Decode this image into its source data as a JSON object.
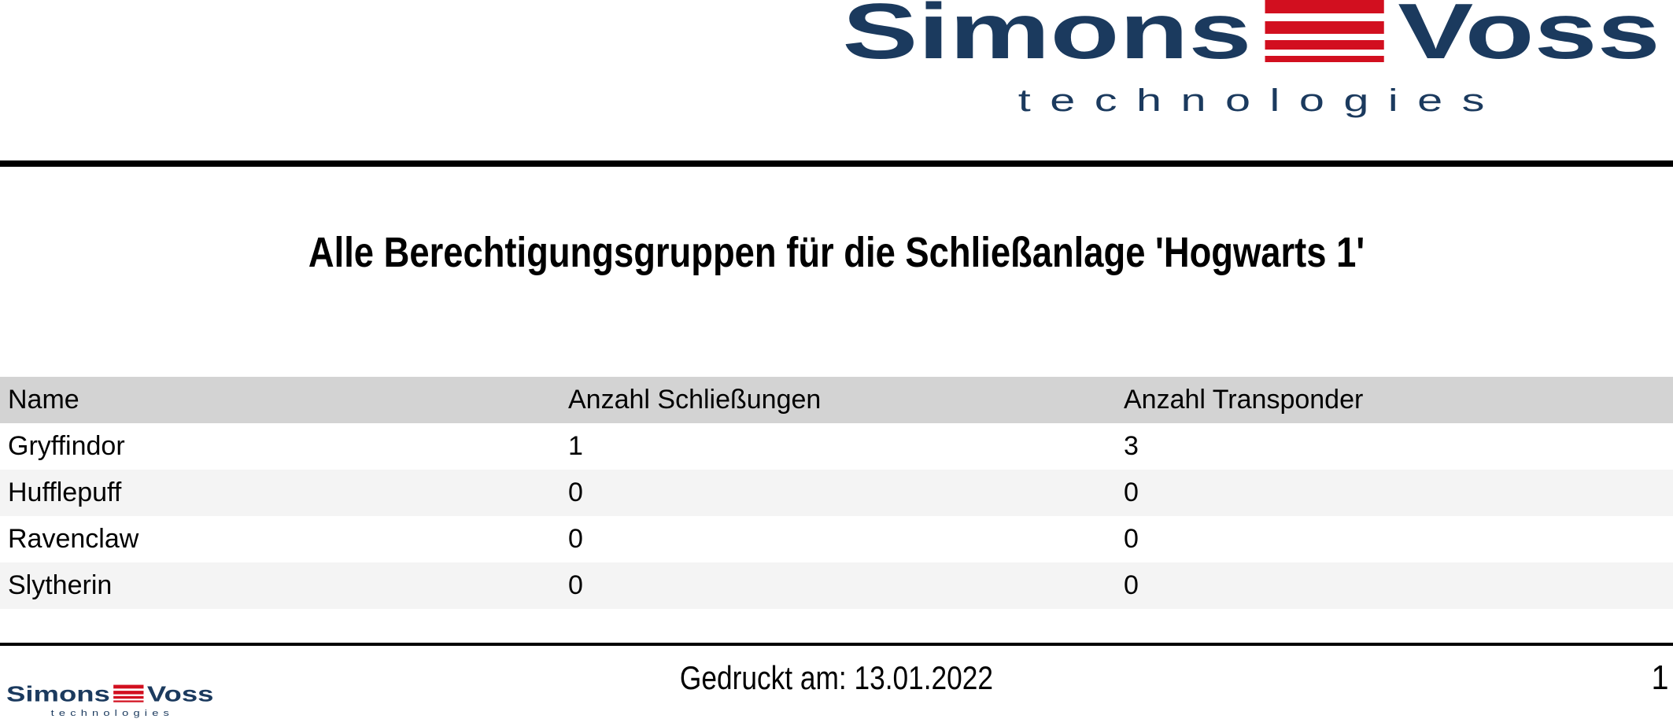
{
  "brand": {
    "name_left": "Simons",
    "name_right": "Voss",
    "tagline": "technologies",
    "navy": "#1b3a5e",
    "red": "#d20f1f"
  },
  "title": "Alle Berechtigungsgruppen für die Schließanlage 'Hogwarts 1'",
  "table": {
    "header_bg": "#d3d3d3",
    "alt_row_bg": "#f4f4f4",
    "columns": [
      "Name",
      "Anzahl Schließungen",
      "Anzahl Transponder"
    ],
    "rows": [
      {
        "name": "Gryffindor",
        "locks": "1",
        "transponders": "3"
      },
      {
        "name": "Hufflepuff",
        "locks": "0",
        "transponders": "0"
      },
      {
        "name": "Ravenclaw",
        "locks": "0",
        "transponders": "0"
      },
      {
        "name": "Slytherin",
        "locks": "0",
        "transponders": "0"
      }
    ]
  },
  "footer": {
    "printed_label": "Gedruckt am: 13.01.2022",
    "page_number": "1"
  }
}
